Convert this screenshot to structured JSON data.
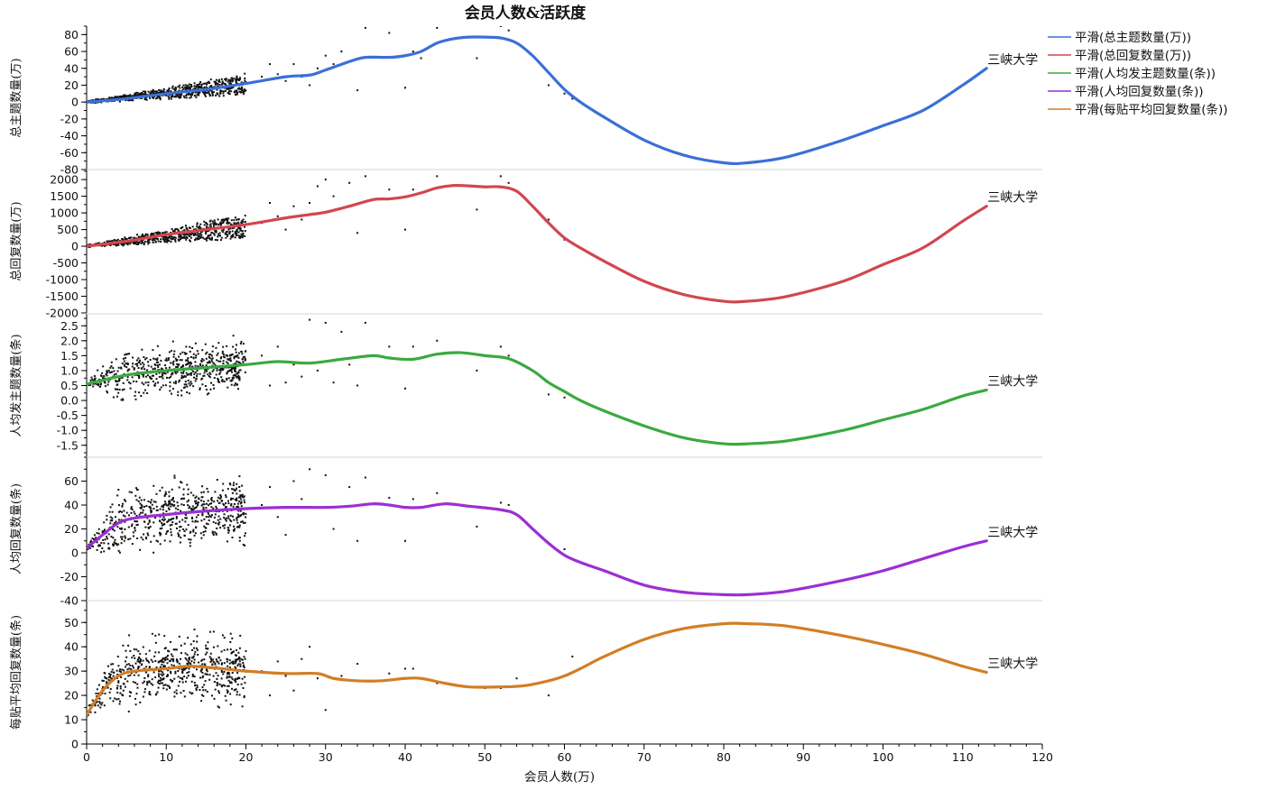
{
  "chart_data": {
    "type": "scatter",
    "title": "会员人数&活跃度",
    "xlabel": "会员人数(万)",
    "xlim": [
      0,
      120
    ],
    "x_ticks": [
      0,
      10,
      20,
      30,
      40,
      50,
      60,
      70,
      80,
      90,
      100,
      110,
      120
    ],
    "legend_position": "top-right",
    "legend": [
      "平滑(总主题数量(万))",
      "平滑(总回复数量(万))",
      "平滑(人均发主题数量(条))",
      "平滑(人均回复数量(条))",
      "平滑(每贴平均回复数量(条))"
    ],
    "panels": [
      {
        "ylabel": "总主题数量(万)",
        "ylim": [
          -80,
          90
        ],
        "y_ticks": [
          -80,
          -60,
          -40,
          -20,
          0,
          20,
          40,
          60,
          80
        ],
        "color": "#3b6fd8",
        "annotation": "三峡大学",
        "annotation_x": 113,
        "smooth": [
          [
            0,
            0
          ],
          [
            5,
            4
          ],
          [
            10,
            10
          ],
          [
            15,
            15
          ],
          [
            20,
            22
          ],
          [
            25,
            30
          ],
          [
            28,
            32
          ],
          [
            30,
            38
          ],
          [
            33,
            48
          ],
          [
            35,
            53
          ],
          [
            38,
            53
          ],
          [
            40,
            55
          ],
          [
            42,
            60
          ],
          [
            44,
            70
          ],
          [
            46,
            75
          ],
          [
            48,
            77
          ],
          [
            50,
            77
          ],
          [
            52,
            76
          ],
          [
            54,
            70
          ],
          [
            56,
            55
          ],
          [
            58,
            35
          ],
          [
            60,
            15
          ],
          [
            62,
            0
          ],
          [
            65,
            -18
          ],
          [
            70,
            -45
          ],
          [
            75,
            -63
          ],
          [
            80,
            -72
          ],
          [
            83,
            -72
          ],
          [
            88,
            -65
          ],
          [
            95,
            -45
          ],
          [
            100,
            -28
          ],
          [
            105,
            -10
          ],
          [
            110,
            20
          ],
          [
            113,
            40
          ]
        ],
        "dots": {
          "seed": 11,
          "count": 620,
          "xmax": 20,
          "base_slope": 1.05,
          "spread": 0.55,
          "extra": [
            [
              22,
              30
            ],
            [
              23,
              45
            ],
            [
              24,
              33
            ],
            [
              25,
              25
            ],
            [
              26,
              45
            ],
            [
              27,
              30
            ],
            [
              28,
              20
            ],
            [
              29,
              40
            ],
            [
              30,
              55
            ],
            [
              31,
              45
            ],
            [
              32,
              60
            ],
            [
              34,
              14
            ],
            [
              35,
              88
            ],
            [
              38,
              82
            ],
            [
              40,
              17
            ],
            [
              41,
              60
            ],
            [
              42,
              52
            ],
            [
              44,
              88
            ],
            [
              49,
              52
            ],
            [
              52,
              90
            ],
            [
              53,
              85
            ],
            [
              58,
              20
            ],
            [
              60,
              10
            ],
            [
              61,
              4
            ]
          ]
        }
      },
      {
        "ylabel": "总回复数量(万)",
        "ylim": [
          -2000,
          2300
        ],
        "y_ticks": [
          -2000,
          -1500,
          -1000,
          -500,
          0,
          500,
          1000,
          1500,
          2000
        ],
        "color": "#d1474e",
        "annotation": "三峡大学",
        "annotation_x": 113,
        "smooth": [
          [
            0,
            0
          ],
          [
            5,
            150
          ],
          [
            10,
            350
          ],
          [
            15,
            500
          ],
          [
            20,
            650
          ],
          [
            25,
            850
          ],
          [
            28,
            950
          ],
          [
            30,
            1020
          ],
          [
            33,
            1200
          ],
          [
            36,
            1400
          ],
          [
            38,
            1420
          ],
          [
            40,
            1480
          ],
          [
            42,
            1600
          ],
          [
            44,
            1750
          ],
          [
            46,
            1820
          ],
          [
            48,
            1810
          ],
          [
            50,
            1780
          ],
          [
            52,
            1780
          ],
          [
            54,
            1650
          ],
          [
            56,
            1200
          ],
          [
            58,
            700
          ],
          [
            60,
            250
          ],
          [
            62,
            -50
          ],
          [
            65,
            -450
          ],
          [
            70,
            -1050
          ],
          [
            75,
            -1450
          ],
          [
            80,
            -1650
          ],
          [
            83,
            -1650
          ],
          [
            88,
            -1500
          ],
          [
            95,
            -1050
          ],
          [
            100,
            -550
          ],
          [
            105,
            -50
          ],
          [
            110,
            750
          ],
          [
            113,
            1200
          ]
        ],
        "dots": {
          "seed": 23,
          "count": 620,
          "xmax": 20,
          "base_slope": 30,
          "spread": 0.6,
          "extra": [
            [
              22,
              700
            ],
            [
              23,
              1300
            ],
            [
              24,
              900
            ],
            [
              25,
              500
            ],
            [
              26,
              1200
            ],
            [
              27,
              800
            ],
            [
              28,
              1300
            ],
            [
              29,
              1800
            ],
            [
              30,
              2000
            ],
            [
              31,
              1500
            ],
            [
              33,
              1900
            ],
            [
              34,
              400
            ],
            [
              35,
              2100
            ],
            [
              38,
              1700
            ],
            [
              40,
              500
            ],
            [
              41,
              1700
            ],
            [
              44,
              2100
            ],
            [
              49,
              1100
            ],
            [
              52,
              2100
            ],
            [
              53,
              1900
            ],
            [
              58,
              800
            ],
            [
              60,
              200
            ],
            [
              61,
              100
            ]
          ]
        }
      },
      {
        "ylabel": "人均发主题数量(条)",
        "ylim": [
          -1.9,
          2.9
        ],
        "y_ticks": [
          -1.5,
          -1.0,
          -0.5,
          0.0,
          0.5,
          1.0,
          1.5,
          2.0,
          2.5
        ],
        "color": "#3aaa3f",
        "annotation": "三峡大学",
        "annotation_x": 113,
        "smooth": [
          [
            0,
            0.55
          ],
          [
            5,
            0.85
          ],
          [
            10,
            1.0
          ],
          [
            15,
            1.1
          ],
          [
            20,
            1.2
          ],
          [
            24,
            1.3
          ],
          [
            28,
            1.25
          ],
          [
            32,
            1.38
          ],
          [
            36,
            1.5
          ],
          [
            38,
            1.42
          ],
          [
            41,
            1.38
          ],
          [
            44,
            1.55
          ],
          [
            47,
            1.6
          ],
          [
            50,
            1.5
          ],
          [
            53,
            1.4
          ],
          [
            56,
            1.0
          ],
          [
            58,
            0.6
          ],
          [
            60,
            0.3
          ],
          [
            62,
            0.0
          ],
          [
            65,
            -0.35
          ],
          [
            70,
            -0.85
          ],
          [
            75,
            -1.25
          ],
          [
            80,
            -1.45
          ],
          [
            83,
            -1.45
          ],
          [
            88,
            -1.35
          ],
          [
            95,
            -1.0
          ],
          [
            100,
            -0.65
          ],
          [
            105,
            -0.3
          ],
          [
            110,
            0.15
          ],
          [
            113,
            0.35
          ]
        ],
        "dots": {
          "seed": 37,
          "count": 620,
          "xmax": 20,
          "base_level": 1.0,
          "spread": 0.55,
          "extra": [
            [
              22,
              1.5
            ],
            [
              23,
              0.5
            ],
            [
              24,
              1.8
            ],
            [
              25,
              0.6
            ],
            [
              26,
              1.2
            ],
            [
              27,
              0.8
            ],
            [
              28,
              2.7
            ],
            [
              29,
              1.0
            ],
            [
              30,
              2.6
            ],
            [
              31,
              0.6
            ],
            [
              32,
              2.3
            ],
            [
              33,
              1.2
            ],
            [
              34,
              0.5
            ],
            [
              35,
              2.6
            ],
            [
              38,
              1.8
            ],
            [
              40,
              0.4
            ],
            [
              41,
              1.8
            ],
            [
              44,
              2.0
            ],
            [
              49,
              1.0
            ],
            [
              52,
              1.8
            ],
            [
              53,
              1.5
            ],
            [
              58,
              0.2
            ],
            [
              60,
              0.1
            ]
          ]
        }
      },
      {
        "ylabel": "人均回复数量(条)",
        "ylim": [
          -40,
          80
        ],
        "y_ticks": [
          -40,
          -20,
          0,
          20,
          40,
          60
        ],
        "color": "#9b2fd4",
        "annotation": "三峡大学",
        "annotation_x": 113,
        "smooth": [
          [
            0,
            4
          ],
          [
            2,
            15
          ],
          [
            4,
            25
          ],
          [
            6,
            29
          ],
          [
            10,
            32
          ],
          [
            15,
            35
          ],
          [
            20,
            37
          ],
          [
            25,
            38
          ],
          [
            30,
            38
          ],
          [
            33,
            39
          ],
          [
            36,
            41
          ],
          [
            38,
            40
          ],
          [
            40,
            38
          ],
          [
            42,
            38
          ],
          [
            45,
            41
          ],
          [
            48,
            39
          ],
          [
            52,
            36
          ],
          [
            54,
            32
          ],
          [
            56,
            20
          ],
          [
            58,
            8
          ],
          [
            60,
            -2
          ],
          [
            62,
            -8
          ],
          [
            65,
            -15
          ],
          [
            70,
            -27
          ],
          [
            75,
            -33
          ],
          [
            80,
            -35
          ],
          [
            83,
            -35
          ],
          [
            88,
            -32
          ],
          [
            95,
            -23
          ],
          [
            100,
            -15
          ],
          [
            105,
            -5
          ],
          [
            110,
            5
          ],
          [
            113,
            10
          ]
        ],
        "dots": {
          "seed": 51,
          "count": 620,
          "xmax": 20,
          "base_level": 32,
          "spread": 18,
          "extra": [
            [
              22,
              40
            ],
            [
              23,
              55
            ],
            [
              24,
              30
            ],
            [
              25,
              15
            ],
            [
              26,
              60
            ],
            [
              27,
              45
            ],
            [
              28,
              70
            ],
            [
              29,
              38
            ],
            [
              30,
              65
            ],
            [
              31,
              20
            ],
            [
              33,
              55
            ],
            [
              34,
              10
            ],
            [
              35,
              63
            ],
            [
              38,
              46
            ],
            [
              40,
              10
            ],
            [
              41,
              45
            ],
            [
              44,
              50
            ],
            [
              49,
              22
            ],
            [
              52,
              42
            ],
            [
              53,
              40
            ],
            [
              58,
              8
            ],
            [
              60,
              3
            ]
          ]
        }
      },
      {
        "ylabel": "每贴平均回复数量(条)",
        "ylim": [
          0,
          59
        ],
        "y_ticks": [
          0,
          10,
          20,
          30,
          40,
          50
        ],
        "color": "#d27e26",
        "annotation": "三峡大学",
        "annotation_x": 113,
        "smooth": [
          [
            0,
            12
          ],
          [
            2,
            22
          ],
          [
            4,
            28
          ],
          [
            6,
            30
          ],
          [
            10,
            31
          ],
          [
            13,
            32
          ],
          [
            17,
            31
          ],
          [
            20,
            30
          ],
          [
            25,
            29
          ],
          [
            29,
            29
          ],
          [
            31,
            27
          ],
          [
            34,
            26
          ],
          [
            37,
            26
          ],
          [
            40,
            27
          ],
          [
            42,
            27
          ],
          [
            45,
            25
          ],
          [
            48,
            23.5
          ],
          [
            52,
            23.5
          ],
          [
            55,
            24
          ],
          [
            58,
            26
          ],
          [
            60,
            28
          ],
          [
            62,
            31
          ],
          [
            65,
            36
          ],
          [
            70,
            43
          ],
          [
            75,
            47.5
          ],
          [
            80,
            49.5
          ],
          [
            83,
            49.5
          ],
          [
            88,
            48.5
          ],
          [
            95,
            44.5
          ],
          [
            100,
            41
          ],
          [
            105,
            37
          ],
          [
            110,
            32
          ],
          [
            113,
            29.5
          ]
        ],
        "dots": {
          "seed": 67,
          "count": 620,
          "xmax": 20,
          "base_level": 30,
          "spread": 9,
          "extra": [
            [
              22,
              30
            ],
            [
              23,
              20
            ],
            [
              24,
              34
            ],
            [
              25,
              28
            ],
            [
              26,
              22
            ],
            [
              27,
              35
            ],
            [
              28,
              40
            ],
            [
              29,
              27
            ],
            [
              30,
              14
            ],
            [
              32,
              28
            ],
            [
              34,
              33
            ],
            [
              35,
              26
            ],
            [
              38,
              29
            ],
            [
              40,
              31
            ],
            [
              41,
              31
            ],
            [
              44,
              25
            ],
            [
              50,
              23
            ],
            [
              52,
              23
            ],
            [
              54,
              27
            ],
            [
              58,
              20
            ],
            [
              61,
              36
            ]
          ]
        }
      }
    ]
  }
}
